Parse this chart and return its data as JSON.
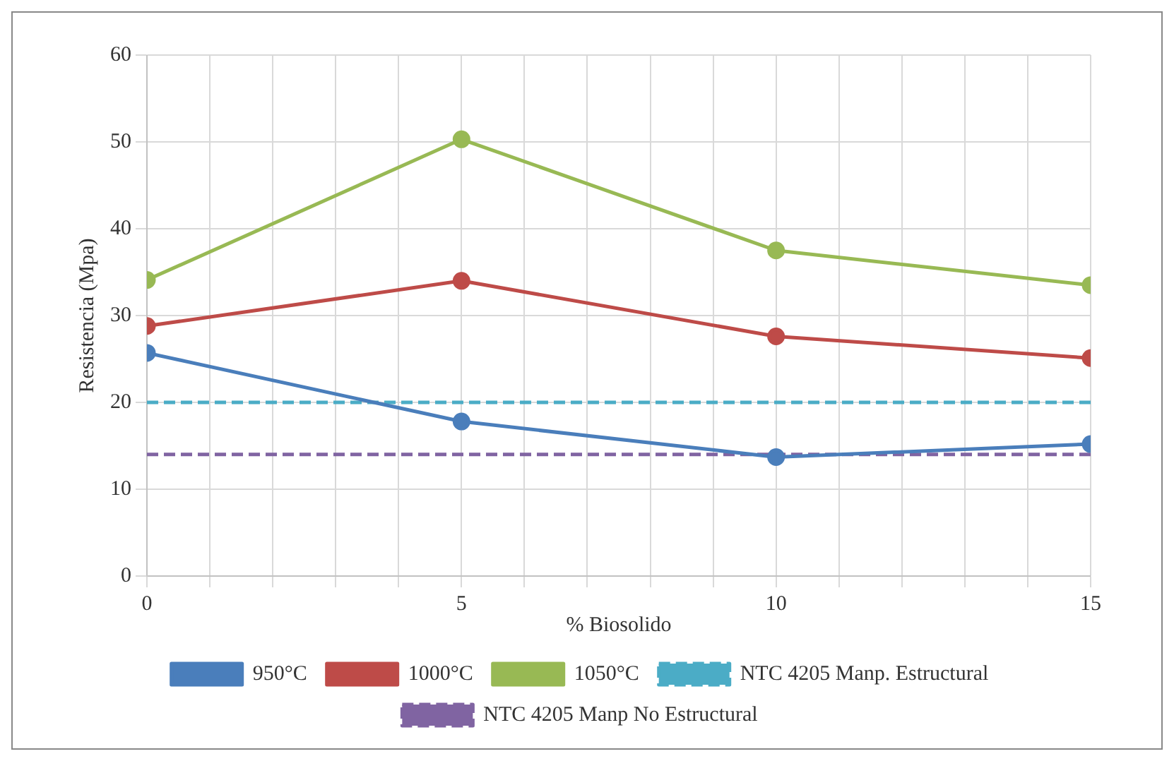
{
  "chart_data": {
    "type": "line",
    "xlabel": "% Biosolido",
    "ylabel": "Resistencia (Mpa)",
    "x": [
      0,
      5,
      10,
      15
    ],
    "xlim": [
      0,
      15
    ],
    "xticks": [
      0,
      {
        "value": 1,
        "label": null
      },
      {
        "value": 2,
        "label": null
      },
      {
        "value": 3,
        "label": null
      },
      {
        "value": 4,
        "label": null
      },
      5,
      {
        "value": 6,
        "label": null
      },
      {
        "value": 7,
        "label": null
      },
      {
        "value": 8,
        "label": null
      },
      {
        "value": 9,
        "label": null
      },
      10,
      {
        "value": 11,
        "label": null
      },
      {
        "value": 12,
        "label": null
      },
      {
        "value": 13,
        "label": null
      },
      {
        "value": 14,
        "label": null
      },
      15
    ],
    "ylim": [
      0,
      60
    ],
    "yticks": [
      0,
      10,
      20,
      30,
      40,
      50,
      60
    ],
    "grid": true,
    "legend": "bottom",
    "series": [
      {
        "name": "950°C",
        "color": "#4a7ebb",
        "values": [
          25.7,
          17.8,
          13.7,
          15.2
        ],
        "marker": "circle",
        "line_style": "solid"
      },
      {
        "name": "1000°C",
        "color": "#be4b48",
        "values": [
          28.8,
          34.0,
          27.6,
          25.1
        ],
        "marker": "circle",
        "line_style": "solid"
      },
      {
        "name": "1050°C",
        "color": "#98b954",
        "values": [
          34.1,
          50.3,
          37.5,
          33.5
        ],
        "marker": "circle",
        "line_style": "solid"
      },
      {
        "name": "NTC 4205 Manp. Estructural",
        "color": "#4bacc6",
        "values": [
          20,
          20,
          20,
          20
        ],
        "marker": "none",
        "line_style": "dashed"
      },
      {
        "name": "NTC 4205 Manp No Estructural",
        "color": "#8064a2",
        "values": [
          14,
          14,
          14,
          14
        ],
        "marker": "none",
        "line_style": "dashed"
      }
    ]
  }
}
